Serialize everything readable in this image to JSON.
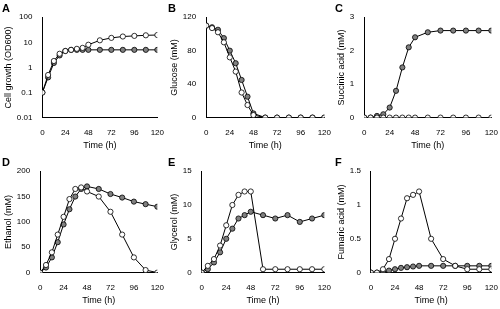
{
  "chart_data": [
    {
      "type": "line",
      "title": "A",
      "x_label": "Time (h)",
      "y_label": "Cell growth (OD600)",
      "log": "y",
      "grid": false,
      "x": [
        0,
        6,
        12,
        18,
        24,
        30,
        36,
        42,
        48,
        60,
        72,
        84,
        96,
        108,
        120
      ],
      "xlim": [
        0,
        120
      ],
      "xticks": [
        0,
        24,
        48,
        72,
        96,
        120
      ],
      "ylim": [
        0.01,
        100
      ],
      "yticks": [
        0.01,
        0.1,
        1,
        10,
        100
      ],
      "series": [
        {
          "color": "#ffffff",
          "marker": "circle",
          "values": [
            0.1,
            0.5,
            1.8,
            3.5,
            4.5,
            5,
            5.5,
            6,
            8,
            12,
            15,
            17,
            18,
            19,
            19.5
          ]
        },
        {
          "color": "#808080",
          "marker": "circle",
          "values": [
            0.1,
            0.4,
            1.5,
            3,
            4.5,
            5,
            5,
            5,
            5,
            5,
            5,
            5,
            5,
            5,
            5
          ]
        }
      ]
    },
    {
      "type": "line",
      "title": "B",
      "x_label": "Time (h)",
      "y_label": "Glucose (mM)",
      "grid": false,
      "x": [
        0,
        6,
        12,
        18,
        24,
        30,
        36,
        42,
        48,
        60,
        72,
        84,
        96,
        108,
        120
      ],
      "xlim": [
        0,
        120
      ],
      "xticks": [
        0,
        24,
        48,
        72,
        96,
        120
      ],
      "ylim": [
        0,
        120
      ],
      "yticks": [
        0,
        40,
        80,
        120
      ],
      "series": [
        {
          "color": "#ffffff",
          "marker": "circle",
          "values": [
            110,
            107,
            102,
            90,
            72,
            55,
            30,
            15,
            3,
            0,
            0,
            0,
            0,
            0,
            0
          ]
        },
        {
          "color": "#808080",
          "marker": "circle",
          "values": [
            110,
            108,
            105,
            95,
            80,
            65,
            45,
            25,
            5,
            0,
            0,
            0,
            0,
            0,
            0
          ]
        }
      ]
    },
    {
      "type": "line",
      "title": "C",
      "x_label": "Time (h)",
      "y_label": "Succinic acid (mM)",
      "grid": false,
      "x": [
        0,
        6,
        12,
        18,
        24,
        30,
        36,
        42,
        48,
        60,
        72,
        84,
        96,
        108,
        120
      ],
      "xlim": [
        0,
        120
      ],
      "xticks": [
        0,
        24,
        48,
        72,
        96,
        120
      ],
      "ylim": [
        0,
        3
      ],
      "yticks": [
        0,
        1,
        2,
        3
      ],
      "series": [
        {
          "color": "#ffffff",
          "marker": "circle",
          "values": [
            0,
            0,
            0,
            0,
            0,
            0,
            0,
            0,
            0,
            0,
            0,
            0,
            0,
            0,
            0
          ]
        },
        {
          "color": "#808080",
          "marker": "circle",
          "values": [
            0,
            0,
            0.05,
            0.1,
            0.3,
            0.8,
            1.5,
            2.1,
            2.4,
            2.55,
            2.6,
            2.6,
            2.6,
            2.6,
            2.6
          ]
        }
      ]
    },
    {
      "type": "line",
      "title": "D",
      "x_label": "Time (h)",
      "y_label": "Ethanol (mM)",
      "grid": false,
      "x": [
        0,
        6,
        12,
        18,
        24,
        30,
        36,
        42,
        48,
        60,
        72,
        84,
        96,
        108,
        120
      ],
      "xlim": [
        0,
        120
      ],
      "xticks": [
        0,
        24,
        48,
        72,
        96,
        120
      ],
      "ylim": [
        0,
        200
      ],
      "yticks": [
        0,
        50,
        100,
        150,
        200
      ],
      "series": [
        {
          "color": "#ffffff",
          "marker": "circle",
          "values": [
            0,
            15,
            40,
            75,
            110,
            145,
            165,
            168,
            160,
            150,
            120,
            75,
            30,
            5,
            0
          ]
        },
        {
          "color": "#808080",
          "marker": "circle",
          "values": [
            0,
            10,
            30,
            60,
            95,
            125,
            150,
            165,
            170,
            165,
            155,
            148,
            140,
            135,
            130
          ]
        }
      ]
    },
    {
      "type": "line",
      "title": "E",
      "x_label": "Time (h)",
      "y_label": "Glycerol (mM)",
      "grid": false,
      "x": [
        0,
        6,
        12,
        18,
        24,
        30,
        36,
        42,
        48,
        60,
        72,
        84,
        96,
        108,
        120
      ],
      "xlim": [
        0,
        120
      ],
      "xticks": [
        0,
        24,
        48,
        72,
        96,
        120
      ],
      "ylim": [
        0,
        15
      ],
      "yticks": [
        0,
        5,
        10,
        15
      ],
      "series": [
        {
          "color": "#ffffff",
          "marker": "circle",
          "values": [
            0,
            1,
            2,
            4,
            7,
            10,
            11.5,
            12,
            12,
            0.5,
            0.5,
            0.5,
            0.5,
            0.5,
            0.5
          ]
        },
        {
          "color": "#808080",
          "marker": "circle",
          "values": [
            0,
            0.5,
            1.5,
            3,
            5,
            6.5,
            8,
            8.5,
            9,
            8.5,
            8,
            8.5,
            7.5,
            8,
            8.5
          ]
        }
      ]
    },
    {
      "type": "line",
      "title": "F",
      "x_label": "Time (h)",
      "y_label": "Fumaric acid (mM)",
      "grid": false,
      "x": [
        0,
        6,
        12,
        18,
        24,
        30,
        36,
        42,
        48,
        60,
        72,
        84,
        96,
        108,
        120
      ],
      "xlim": [
        0,
        120
      ],
      "xticks": [
        0,
        24,
        48,
        72,
        96,
        120
      ],
      "ylim": [
        0,
        1.5
      ],
      "yticks": [
        0,
        0.5,
        1,
        1.5
      ],
      "series": [
        {
          "color": "#ffffff",
          "marker": "circle",
          "values": [
            0,
            0,
            0.05,
            0.2,
            0.5,
            0.8,
            1.1,
            1.15,
            1.2,
            0.5,
            0.2,
            0.1,
            0.05,
            0.05,
            0.05
          ]
        },
        {
          "color": "#808080",
          "marker": "circle",
          "values": [
            0,
            0,
            0.01,
            0.03,
            0.05,
            0.07,
            0.08,
            0.09,
            0.1,
            0.1,
            0.1,
            0.1,
            0.1,
            0.1,
            0.1
          ]
        }
      ]
    }
  ]
}
